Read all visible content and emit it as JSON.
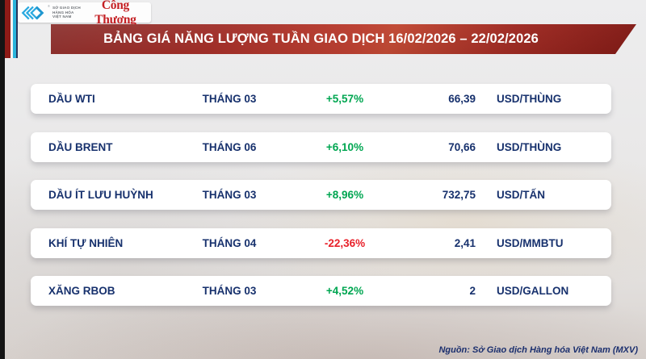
{
  "header": {
    "mxv_lines": [
      "SỞ GIAO DỊCH",
      "HÀNG HÓA",
      "VIỆT NAM"
    ],
    "brand": "Công Thương",
    "title": "BẢNG GIÁ NĂNG LƯỢNG TUẦN GIAO DỊCH 16/02/2026 – 22/02/2026"
  },
  "table": {
    "rows": [
      {
        "name": "DẦU WTI",
        "month": "THÁNG 03",
        "change": "+5,57%",
        "price": "66,39",
        "unit": "USD/THÙNG"
      },
      {
        "name": "DẦU BRENT",
        "month": "THÁNG 06",
        "change": "+6,10%",
        "price": "70,66",
        "unit": "USD/THÙNG"
      },
      {
        "name": "DẦU ÍT LƯU HUỲNH",
        "month": "THÁNG 03",
        "change": "+8,96%",
        "price": "732,75",
        "unit": "USD/TẤN"
      },
      {
        "name": "KHÍ TỰ NHIÊN",
        "month": "THÁNG 04",
        "change": "-22,36%",
        "price": "2,41",
        "unit": "USD/MMBTU"
      },
      {
        "name": "XĂNG RBOB",
        "month": "THÁNG 03",
        "change": "+4,52%",
        "price": "2",
        "unit": "USD/GALLON"
      }
    ]
  },
  "chart_data": {
    "type": "table",
    "title": "BẢNG GIÁ NĂNG LƯỢNG TUẦN GIAO DỊCH 16/02/2026 – 22/02/2026",
    "rows": [
      {
        "name": "DẦU WTI",
        "month": "THÁNG 03",
        "change_pct": 5.57,
        "price": 66.39,
        "unit": "USD/THÙNG"
      },
      {
        "name": "DẦU BRENT",
        "month": "THÁNG 06",
        "change_pct": 6.1,
        "price": 70.66,
        "unit": "USD/THÙNG"
      },
      {
        "name": "DẦU ÍT LƯU HUỲNH",
        "month": "THÁNG 03",
        "change_pct": 8.96,
        "price": 732.75,
        "unit": "USD/TẤN"
      },
      {
        "name": "KHÍ TỰ NHIÊN",
        "month": "THÁNG 04",
        "change_pct": -22.36,
        "price": 2.41,
        "unit": "USD/MMBTU"
      },
      {
        "name": "XĂNG RBOB",
        "month": "THÁNG 03",
        "change_pct": 4.52,
        "price": 2,
        "unit": "USD/GALLON"
      }
    ],
    "source": "Nguồn: Sở Giao dịch Hàng hóa Việt Nam (MXV)"
  },
  "footer": {
    "source": "Nguồn: Sở Giao dịch Hàng hóa Việt Nam (MXV)"
  },
  "colors": {
    "up": "#00a651",
    "down": "#e8212a",
    "navy_text": "#17316d",
    "banner_red": "#a42a22",
    "accent_cyan": "#2ab4dc"
  },
  "layout": {
    "row_top_start": 104,
    "row_spacing": 59.5
  }
}
